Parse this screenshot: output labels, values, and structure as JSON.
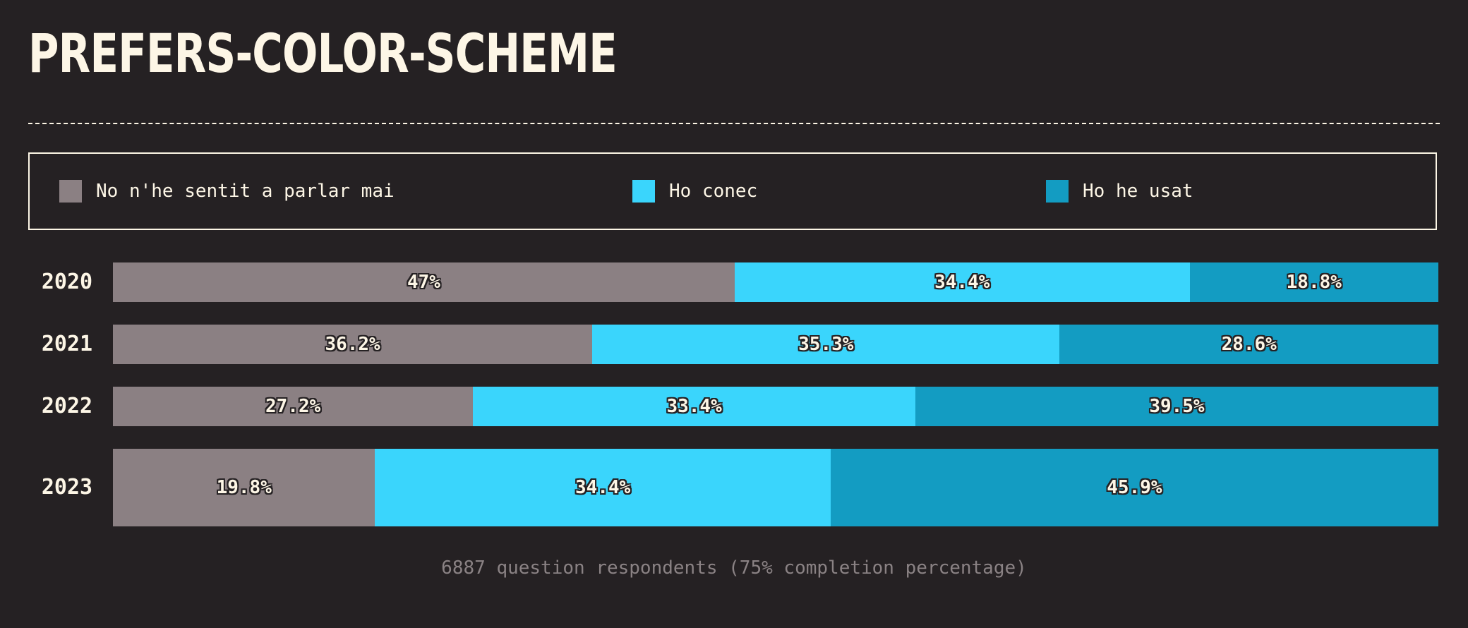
{
  "chart_data": {
    "type": "bar",
    "orientation": "horizontal",
    "stacked": true,
    "normalized": true,
    "title": "PREFERS-COLOR-SCHEME",
    "categories": [
      "2020",
      "2021",
      "2022",
      "2023"
    ],
    "series": [
      {
        "name": "No n'he sentit a parlar mai",
        "color": "#8b8083",
        "values": [
          47,
          36.2,
          27.2,
          19.8
        ]
      },
      {
        "name": "Ho conec",
        "color": "#3ad5fc",
        "values": [
          34.4,
          35.3,
          33.4,
          34.4
        ]
      },
      {
        "name": "Ho he usat",
        "color": "#139cc2",
        "values": [
          18.8,
          28.6,
          39.5,
          45.9
        ]
      }
    ],
    "value_labels": [
      [
        "47%",
        "34.4%",
        "18.8%"
      ],
      [
        "36.2%",
        "35.3%",
        "28.6%"
      ],
      [
        "27.2%",
        "33.4%",
        "39.5%"
      ],
      [
        "19.8%",
        "34.4%",
        "45.9%"
      ]
    ],
    "legend_position": "top",
    "footer": "6887 question respondents (75% completion percentage)"
  }
}
